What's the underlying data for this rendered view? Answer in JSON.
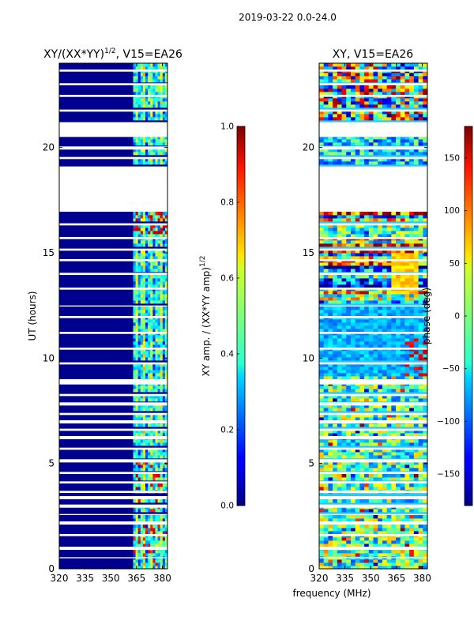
{
  "figure": {
    "suptitle": "2019-03-22 0.0-24.0"
  },
  "chart_data": [
    {
      "type": "heatmap",
      "title": "XY/(XX*YY)",
      "title_sup": "1/2",
      "title_suffix": ", V15=EA26",
      "xlabel": "",
      "ylabel": "UT (hours)",
      "xlim": [
        320,
        383
      ],
      "ylim": [
        0,
        24
      ],
      "xticks": [
        320,
        335,
        350,
        365,
        380
      ],
      "yticks": [
        0,
        5,
        10,
        15,
        20
      ],
      "colormap": "jet",
      "colorbar": {
        "label": "XY amp. / (XX*YY amp)",
        "label_sup": "1/2",
        "range": [
          0.0,
          1.0
        ],
        "ticks": [
          "0.0",
          "0.2",
          "0.4",
          "0.6",
          "0.8",
          "1.0"
        ],
        "tick_values": [
          0.0,
          0.2,
          0.4,
          0.6,
          0.8,
          1.0
        ]
      },
      "blank_ut_ranges": [
        [
          0.5,
          0.55
        ],
        [
          0.9,
          1.05
        ],
        [
          1.55,
          1.65
        ],
        [
          2.1,
          2.25
        ],
        [
          2.55,
          2.6
        ],
        [
          2.9,
          3.05
        ],
        [
          3.3,
          3.45
        ],
        [
          3.6,
          3.7
        ],
        [
          4.05,
          4.15
        ],
        [
          4.5,
          4.6
        ],
        [
          5.05,
          5.2
        ],
        [
          5.65,
          5.75
        ],
        [
          6.15,
          6.3
        ],
        [
          6.55,
          6.65
        ],
        [
          6.9,
          7.05
        ],
        [
          7.3,
          7.4
        ],
        [
          7.75,
          7.9
        ],
        [
          8.2,
          8.3
        ],
        [
          8.75,
          9.0
        ],
        [
          9.7,
          9.8
        ],
        [
          10.4,
          10.5
        ],
        [
          11.15,
          11.25
        ],
        [
          11.9,
          12.0
        ],
        [
          12.45,
          12.5
        ],
        [
          13.25,
          13.35
        ],
        [
          13.95,
          14.05
        ],
        [
          14.6,
          14.7
        ],
        [
          15.1,
          15.2
        ],
        [
          15.65,
          15.75
        ],
        [
          16.3,
          16.4
        ],
        [
          16.95,
          19.1
        ],
        [
          19.45,
          19.55
        ],
        [
          19.9,
          20.05
        ],
        [
          20.5,
          21.2
        ],
        [
          21.7,
          21.8
        ],
        [
          22.4,
          22.5
        ],
        [
          22.95,
          23.05
        ],
        [
          23.6,
          23.7
        ]
      ],
      "band_mhz": [
        363,
        383
      ]
    },
    {
      "type": "heatmap",
      "title": "XY, V15=EA26",
      "xlabel": "frequency (MHz)",
      "ylabel": "",
      "xlim": [
        320,
        383
      ],
      "ylim": [
        0,
        24
      ],
      "xticks": [
        320,
        335,
        350,
        365,
        380
      ],
      "yticks": [
        0,
        5,
        10,
        15,
        20
      ],
      "colormap": "jet",
      "colorbar": {
        "label": "phase (deg)",
        "range": [
          -180,
          180
        ],
        "ticks": [
          "−150",
          "−100",
          "−50",
          "0",
          "50",
          "100",
          "150"
        ],
        "tick_values": [
          -150,
          -100,
          -50,
          0,
          50,
          100,
          150
        ]
      },
      "blank_ut_ranges": [
        [
          0.5,
          0.55
        ],
        [
          0.9,
          1.05
        ],
        [
          1.55,
          1.65
        ],
        [
          2.1,
          2.25
        ],
        [
          2.55,
          2.6
        ],
        [
          2.9,
          3.05
        ],
        [
          3.3,
          3.45
        ],
        [
          3.6,
          3.7
        ],
        [
          4.05,
          4.15
        ],
        [
          4.5,
          4.6
        ],
        [
          5.05,
          5.2
        ],
        [
          5.65,
          5.75
        ],
        [
          6.15,
          6.3
        ],
        [
          6.55,
          6.65
        ],
        [
          6.9,
          7.05
        ],
        [
          7.3,
          7.4
        ],
        [
          7.75,
          7.9
        ],
        [
          8.2,
          8.3
        ],
        [
          8.75,
          9.0
        ],
        [
          9.7,
          9.8
        ],
        [
          10.4,
          10.5
        ],
        [
          11.15,
          11.25
        ],
        [
          11.9,
          12.0
        ],
        [
          12.45,
          12.5
        ],
        [
          13.25,
          13.35
        ],
        [
          13.95,
          14.05
        ],
        [
          14.6,
          14.7
        ],
        [
          15.1,
          15.2
        ],
        [
          15.65,
          15.75
        ],
        [
          16.3,
          16.4
        ],
        [
          16.95,
          19.1
        ],
        [
          19.45,
          19.55
        ],
        [
          19.9,
          20.05
        ],
        [
          20.5,
          21.2
        ],
        [
          21.7,
          21.8
        ],
        [
          22.4,
          22.5
        ],
        [
          22.95,
          23.05
        ],
        [
          23.6,
          23.7
        ]
      ]
    }
  ]
}
